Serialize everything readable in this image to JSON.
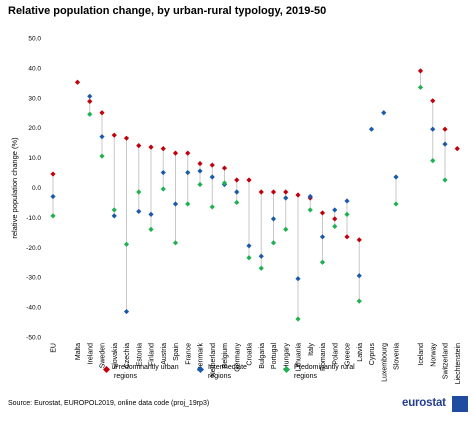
{
  "chart_data": {
    "type": "scatter",
    "title": "Relative population change, by urban-rural typology, 2019-50",
    "ylabel": "relative population change (%)",
    "xlabel": "",
    "ylim": [
      -50,
      50
    ],
    "yticks": [
      "50.0",
      "40.0",
      "30.0",
      "20.0",
      "10.0",
      "0.0",
      "-10.0",
      "-20.0",
      "-30.0",
      "-40.0",
      "-50.0"
    ],
    "grid": false,
    "legend_position": "bottom",
    "categories": [
      "EU",
      "",
      "Malta",
      "Ireland",
      "Sweden",
      "Slovakia",
      "Czechia",
      "Estonia",
      "Finland",
      "Austria",
      "Spain",
      "France",
      "Denmark",
      "Netherland",
      "Belgium",
      "Germany",
      "Croatia",
      "Bulgaria",
      "Portugal",
      "Hungary",
      "Lithuania",
      "Italy",
      "Romania",
      "Poland",
      "Greece",
      "Latvia",
      "Cyprus",
      "Luxembourg",
      "Slovenia",
      "",
      "Iceland",
      "Norway",
      "Switzerland",
      "Liechtenstein"
    ],
    "series": [
      {
        "name": "Predominantly urban regions",
        "color": "#c0000c",
        "values": [
          4.5,
          null,
          35.2,
          28.8,
          25.0,
          17.5,
          16.5,
          14.0,
          13.5,
          13.0,
          11.5,
          11.5,
          8.0,
          7.5,
          6.5,
          2.5,
          2.5,
          -1.5,
          -1.5,
          -1.5,
          -2.5,
          -3.5,
          -8.5,
          -10.5,
          -16.5,
          -17.5,
          null,
          null,
          null,
          null,
          39.0,
          29.0,
          19.5,
          13.0
        ]
      },
      {
        "name": "Intermediate regions",
        "color": "#1a5aa8",
        "values": [
          -3.0,
          null,
          null,
          30.5,
          17.0,
          -9.5,
          -41.5,
          -8.0,
          -9.0,
          5.0,
          -5.5,
          5.0,
          5.5,
          3.5,
          1.0,
          -1.5,
          -19.5,
          -23.0,
          -10.5,
          -3.5,
          -30.5,
          -3.0,
          -16.5,
          -7.5,
          -4.5,
          -29.5,
          19.5,
          25.0,
          3.5,
          null,
          null,
          19.5,
          14.5,
          null
        ]
      },
      {
        "name": "Predominantly rural regions",
        "color": "#20b050",
        "values": [
          -9.5,
          null,
          null,
          24.5,
          10.5,
          -7.5,
          -19.0,
          -1.5,
          -14.0,
          -0.5,
          -18.5,
          -5.5,
          1.0,
          -6.5,
          1.5,
          -5.0,
          -23.5,
          -27.0,
          -18.5,
          -14.0,
          -44.0,
          -7.5,
          -25.0,
          -13.0,
          -9.0,
          -38.0,
          null,
          null,
          -5.5,
          null,
          33.5,
          9.0,
          2.5,
          null
        ]
      }
    ]
  },
  "source": "Source: Eurostat, EUROPOL2019, online data code (proj_19rp3)",
  "logo": {
    "name": "eurostat-logo",
    "text": "eurostat"
  }
}
